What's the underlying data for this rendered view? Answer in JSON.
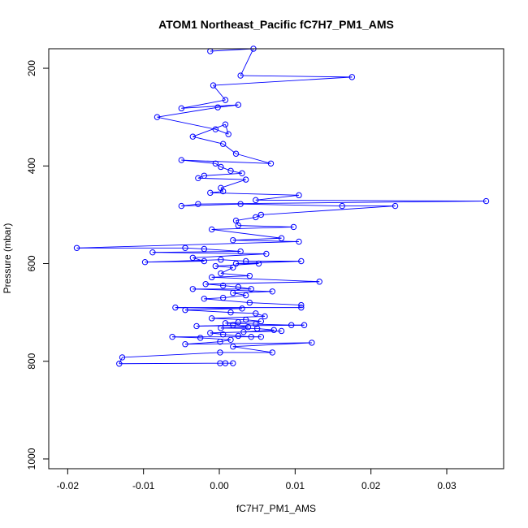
{
  "chart_data": {
    "type": "line",
    "title": "ATOM1 Northeast_Pacific fC7H7_PM1_AMS",
    "xlabel": "fC7H7_PM1_AMS",
    "ylabel": "Pressure (mbar)",
    "xlim": [
      -0.0225,
      0.0375
    ],
    "ylim": [
      1020,
      160
    ],
    "y_reversed": true,
    "x_ticks": [
      -0.02,
      -0.01,
      0.0,
      0.01,
      0.02,
      0.03
    ],
    "x_tick_labels": [
      "-0.02",
      "-0.01",
      "0.00",
      "0.01",
      "0.02",
      "0.03"
    ],
    "y_ticks": [
      200,
      400,
      600,
      800,
      1000
    ],
    "y_tick_labels": [
      "200",
      "400",
      "600",
      "800",
      "1000"
    ],
    "grid": false,
    "legend": "none",
    "colors": {
      "series": "#0000ff",
      "axis": "#000000"
    },
    "series": [
      {
        "marker": "open-circle",
        "points": [
          [
            -0.0012,
            165
          ],
          [
            0.0045,
            160
          ],
          [
            0.0028,
            215
          ],
          [
            0.0175,
            218
          ],
          [
            -0.0008,
            235
          ],
          [
            0.0008,
            265
          ],
          [
            -0.005,
            282
          ],
          [
            0.0025,
            275
          ],
          [
            -0.0002,
            280
          ],
          [
            -0.0082,
            300
          ],
          [
            -0.0005,
            325
          ],
          [
            0.0012,
            335
          ],
          [
            0.0008,
            315
          ],
          [
            -0.0035,
            340
          ],
          [
            0.0005,
            355
          ],
          [
            0.0022,
            375
          ],
          [
            0.0068,
            395
          ],
          [
            -0.005,
            388
          ],
          [
            -0.0005,
            395
          ],
          [
            0.0002,
            402
          ],
          [
            0.0015,
            410
          ],
          [
            0.003,
            415
          ],
          [
            -0.002,
            420
          ],
          [
            -0.0028,
            425
          ],
          [
            0.0035,
            428
          ],
          [
            0.0002,
            445
          ],
          [
            0.0005,
            452
          ],
          [
            -0.0012,
            455
          ],
          [
            0.0105,
            460
          ],
          [
            0.0048,
            470
          ],
          [
            0.0352,
            472
          ],
          [
            -0.0028,
            478
          ],
          [
            -0.005,
            482
          ],
          [
            0.0028,
            478
          ],
          [
            0.0162,
            482
          ],
          [
            0.0232,
            482
          ],
          [
            0.0055,
            500
          ],
          [
            0.0048,
            505
          ],
          [
            0.0022,
            512
          ],
          [
            0.0025,
            522
          ],
          [
            0.0098,
            525
          ],
          [
            -0.001,
            530
          ],
          [
            0.0082,
            548
          ],
          [
            0.0018,
            552
          ],
          [
            0.0105,
            555
          ],
          [
            -0.0188,
            568
          ],
          [
            -0.0045,
            568
          ],
          [
            -0.002,
            570
          ],
          [
            0.0028,
            575
          ],
          [
            -0.0088,
            577
          ],
          [
            0.0062,
            580
          ],
          [
            -0.0035,
            588
          ],
          [
            -0.002,
            595
          ],
          [
            -0.0098,
            597
          ],
          [
            0.0002,
            592
          ],
          [
            0.0035,
            595
          ],
          [
            0.0108,
            595
          ],
          [
            0.0022,
            600
          ],
          [
            0.0052,
            600
          ],
          [
            -0.0005,
            605
          ],
          [
            0.0018,
            608
          ],
          [
            0.0002,
            620
          ],
          [
            0.004,
            625
          ],
          [
            -0.001,
            628
          ],
          [
            0.0132,
            637
          ],
          [
            -0.0018,
            642
          ],
          [
            0.0005,
            645
          ],
          [
            0.0025,
            648
          ],
          [
            0.0042,
            652
          ],
          [
            -0.0035,
            652
          ],
          [
            0.007,
            657
          ],
          [
            0.0018,
            660
          ],
          [
            0.0035,
            665
          ],
          [
            0.0005,
            670
          ],
          [
            -0.002,
            672
          ],
          [
            0.004,
            680
          ],
          [
            0.0108,
            685
          ],
          [
            0.0108,
            690
          ],
          [
            -0.0058,
            690
          ],
          [
            0.003,
            692
          ],
          [
            -0.0045,
            695
          ],
          [
            0.0015,
            700
          ],
          [
            0.0048,
            702
          ],
          [
            0.006,
            708
          ],
          [
            -0.001,
            712
          ],
          [
            0.0035,
            715
          ],
          [
            0.0055,
            718
          ],
          [
            0.0025,
            720
          ],
          [
            0.0008,
            722
          ],
          [
            0.0048,
            724
          ],
          [
            0.0095,
            726
          ],
          [
            0.0112,
            726
          ],
          [
            -0.003,
            728
          ],
          [
            0.0018,
            726
          ],
          [
            0.0038,
            730
          ],
          [
            0.0002,
            732
          ],
          [
            0.005,
            733
          ],
          [
            0.0072,
            736
          ],
          [
            0.0032,
            740
          ],
          [
            0.0082,
            738
          ],
          [
            -0.0012,
            742
          ],
          [
            0.0005,
            745
          ],
          [
            0.0025,
            748
          ],
          [
            0.0042,
            750
          ],
          [
            0.0055,
            750
          ],
          [
            -0.0062,
            750
          ],
          [
            -0.0025,
            752
          ],
          [
            0.0015,
            756
          ],
          [
            0.0001,
            760
          ],
          [
            -0.0045,
            765
          ],
          [
            0.0122,
            762
          ],
          [
            0.0018,
            770
          ],
          [
            0.007,
            782
          ],
          [
            0.0001,
            782
          ],
          [
            -0.0128,
            792
          ],
          [
            -0.0132,
            805
          ],
          [
            0.0001,
            804
          ],
          [
            0.0008,
            804
          ],
          [
            0.0018,
            804
          ]
        ]
      }
    ]
  }
}
